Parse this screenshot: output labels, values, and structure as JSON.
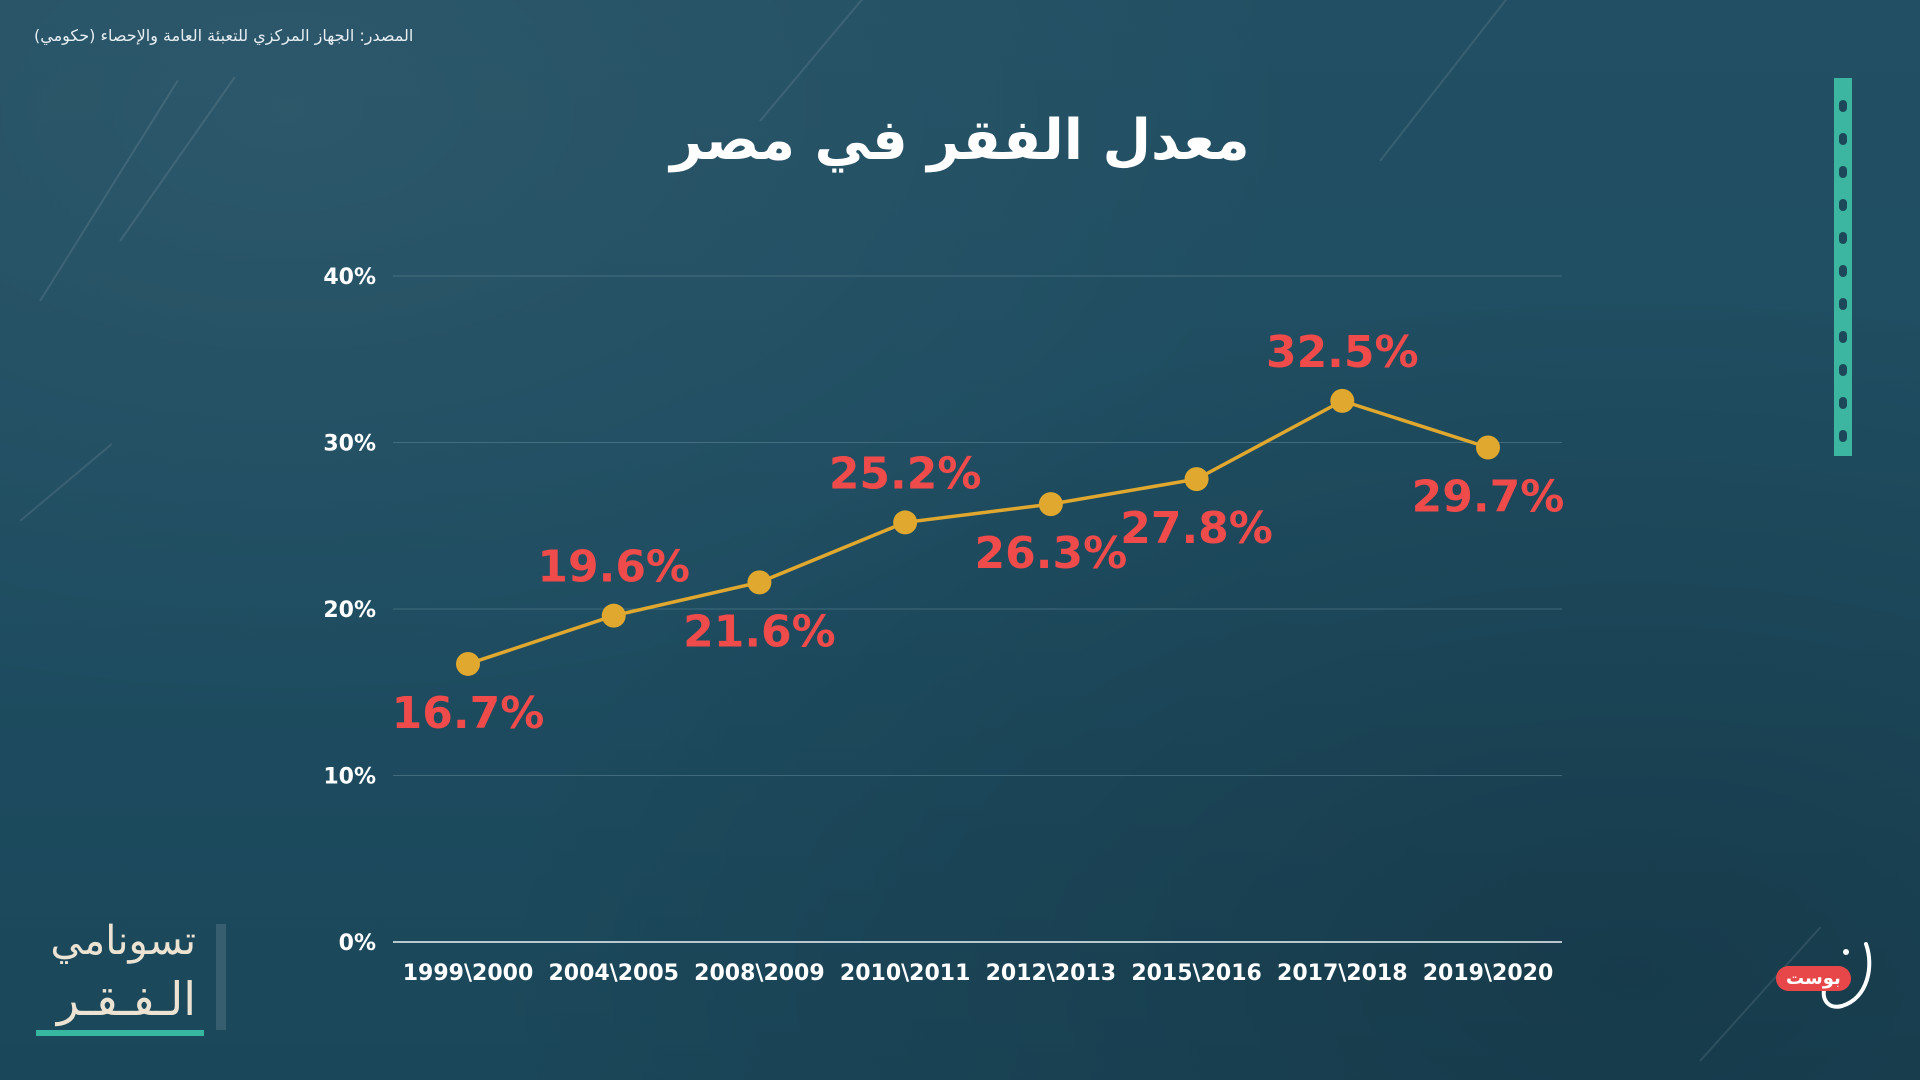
{
  "source_note": "المصدر: الجهاز المركزي للتعبئة العامة والإحصاء (حكومي)",
  "title": "معدل الفقر في مصر",
  "logo": {
    "line1": "تسونامي",
    "line2": "الـفـقـر"
  },
  "brand": {
    "badge": "بوست",
    "mark": "ن"
  },
  "colors": {
    "background": "#1f4f63",
    "line": "#e0a82e",
    "marker": "#e0a82e",
    "value_label": "#ef4b4b",
    "gridline": "#5f8797",
    "accent": "#3cb6a0"
  },
  "chart_data": {
    "type": "line",
    "title": "معدل الفقر في مصر",
    "categories": [
      "1999\\2000",
      "2004\\2005",
      "2008\\2009",
      "2010\\2011",
      "2012\\2013",
      "2015\\2016",
      "2017\\2018",
      "2019\\2020"
    ],
    "values": [
      16.7,
      19.6,
      21.6,
      25.2,
      26.3,
      27.8,
      32.5,
      29.7
    ],
    "value_labels": [
      "16.7%",
      "19.6%",
      "21.6%",
      "25.2%",
      "26.3%",
      "27.8%",
      "32.5%",
      "29.7%"
    ],
    "label_position": [
      "below",
      "above",
      "below",
      "above",
      "below",
      "below",
      "above",
      "below"
    ],
    "yticks": [
      0,
      10,
      20,
      30,
      40
    ],
    "ytick_labels": [
      "0%",
      "10%",
      "20%",
      "30%",
      "40%"
    ],
    "ylim": [
      0,
      40
    ],
    "grid": true,
    "xlabel": "",
    "ylabel": ""
  }
}
